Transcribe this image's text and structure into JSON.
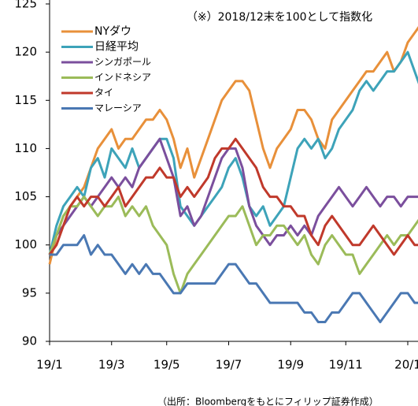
{
  "chart_data": {
    "type": "line",
    "annotation": "（※）2018/12末を100として指数化",
    "source": "（出所：Bloombergをもとにフィリップ証券作成）",
    "categories": [
      "19/1",
      null,
      null,
      null,
      null,
      null,
      null,
      null,
      null,
      "19/3",
      null,
      null,
      null,
      null,
      null,
      null,
      null,
      "19/5",
      null,
      null,
      null,
      null,
      null,
      null,
      null,
      null,
      "19/7",
      null,
      null,
      null,
      null,
      null,
      null,
      null,
      null,
      "19/9",
      null,
      null,
      null,
      null,
      null,
      null,
      null,
      "19/11",
      null,
      null,
      null,
      null,
      null,
      null,
      null,
      null,
      "20/1",
      null,
      null
    ],
    "ylim": [
      90,
      125
    ],
    "yticks": [
      90,
      95,
      100,
      105,
      110,
      115,
      120,
      125
    ],
    "grid": false,
    "legend": "upper left",
    "series": [
      {
        "name": "NYダウ",
        "color": "#e8903a",
        "values": [
          98,
          101,
          103,
          104,
          105,
          106,
          108,
          110,
          111,
          112,
          110,
          111,
          111,
          112,
          113,
          113,
          114,
          113,
          111,
          108,
          110,
          107,
          109,
          111,
          113,
          115,
          116,
          117,
          117,
          116,
          113,
          110,
          108,
          110,
          111,
          112,
          114,
          114,
          113,
          111,
          110,
          113,
          114,
          115,
          116,
          117,
          118,
          118,
          119,
          120,
          118,
          119,
          121,
          122,
          123
        ]
      },
      {
        "name": "日経平均",
        "color": "#3da3b9",
        "values": [
          99,
          102,
          104,
          105,
          106,
          105,
          108,
          109,
          107,
          110,
          109,
          108,
          110,
          108,
          109,
          110,
          111,
          111,
          109,
          104,
          103,
          102,
          103,
          104,
          105,
          106,
          108,
          109,
          107,
          104,
          103,
          104,
          102,
          103,
          104,
          107,
          110,
          111,
          110,
          111,
          109,
          110,
          112,
          113,
          114,
          116,
          117,
          116,
          117,
          118,
          118,
          119,
          120,
          118,
          116
        ]
      },
      {
        "name": "シンガポール",
        "color": "#7b4f9d",
        "values": [
          99,
          101,
          102,
          103,
          104,
          105,
          104,
          105,
          106,
          107,
          106,
          107,
          106,
          108,
          109,
          110,
          111,
          109,
          107,
          103,
          104,
          102,
          103,
          105,
          107,
          109,
          110,
          110,
          108,
          104,
          102,
          101,
          100,
          101,
          101,
          102,
          101,
          102,
          101,
          103,
          104,
          105,
          106,
          105,
          104,
          105,
          106,
          105,
          104,
          105,
          105,
          104,
          105,
          105,
          105
        ]
      },
      {
        "name": "インドネシア",
        "color": "#9bbb59",
        "values": [
          99,
          101,
          103,
          104,
          104,
          105,
          104,
          103,
          104,
          104,
          105,
          103,
          104,
          103,
          104,
          102,
          101,
          100,
          97,
          95,
          97,
          98,
          99,
          100,
          101,
          102,
          103,
          103,
          104,
          102,
          100,
          101,
          101,
          102,
          102,
          101,
          100,
          101,
          99,
          98,
          100,
          101,
          100,
          99,
          99,
          97,
          98,
          99,
          100,
          101,
          100,
          101,
          101,
          102,
          103
        ]
      },
      {
        "name": "タイ",
        "color": "#c0392b",
        "values": [
          99,
          100,
          102,
          104,
          105,
          104,
          105,
          105,
          104,
          105,
          106,
          104,
          105,
          106,
          107,
          107,
          108,
          107,
          107,
          105,
          106,
          105,
          106,
          107,
          109,
          110,
          110,
          111,
          110,
          109,
          108,
          106,
          105,
          105,
          104,
          104,
          103,
          103,
          101,
          100,
          102,
          103,
          102,
          101,
          100,
          100,
          101,
          102,
          101,
          100,
          99,
          100,
          101,
          100,
          100
        ]
      },
      {
        "name": "マレーシア",
        "color": "#4a78b3",
        "values": [
          99,
          99,
          100,
          100,
          100,
          101,
          99,
          100,
          99,
          99,
          98,
          97,
          98,
          97,
          98,
          97,
          97,
          96,
          95,
          95,
          96,
          96,
          96,
          96,
          96,
          97,
          98,
          98,
          97,
          96,
          96,
          95,
          94,
          94,
          94,
          94,
          94,
          93,
          93,
          92,
          92,
          93,
          93,
          94,
          95,
          95,
          94,
          93,
          92,
          93,
          94,
          95,
          95,
          94,
          94
        ]
      }
    ]
  }
}
